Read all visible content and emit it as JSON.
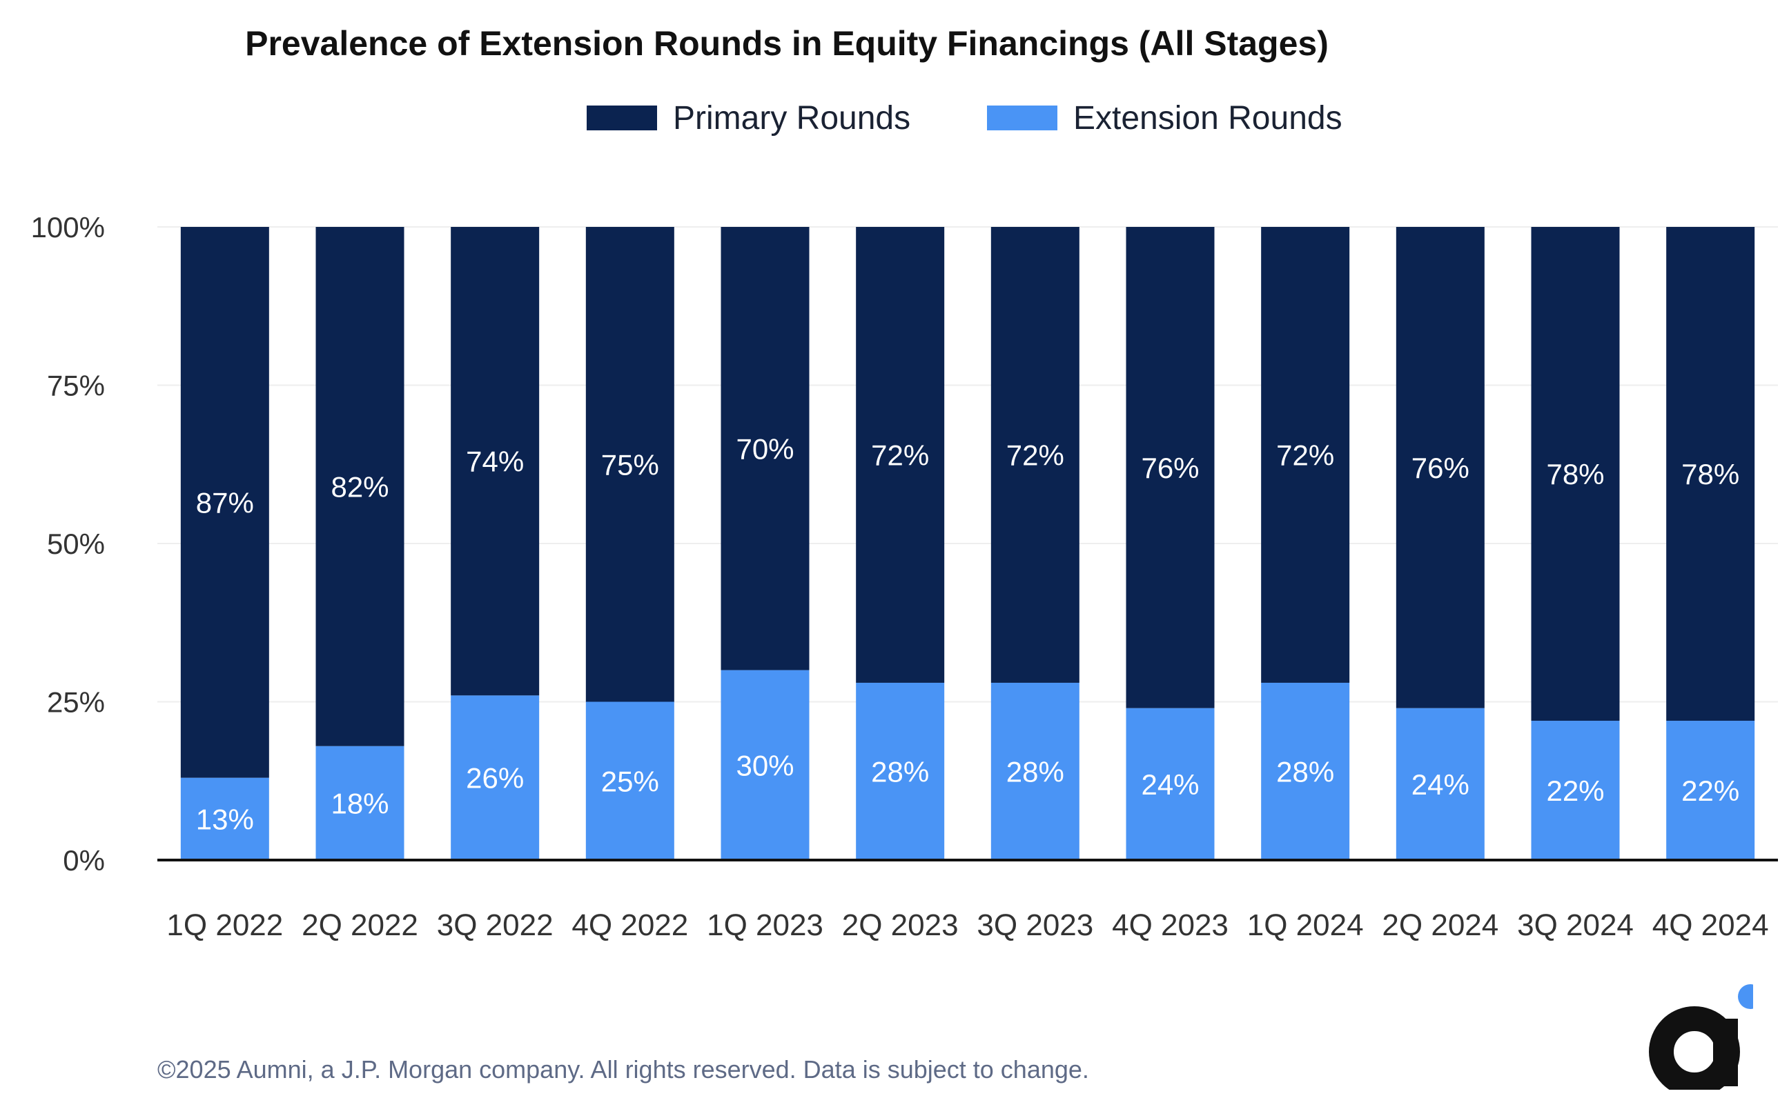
{
  "chart_data": {
    "type": "bar",
    "stacked": true,
    "title": "Prevalence of Extension Rounds in Equity Financings (All Stages)",
    "categories": [
      "1Q 2022",
      "2Q 2022",
      "3Q 2022",
      "4Q 2022",
      "1Q 2023",
      "2Q 2023",
      "3Q 2023",
      "4Q 2023",
      "1Q 2024",
      "2Q 2024",
      "3Q 2024",
      "4Q 2024"
    ],
    "series": [
      {
        "name": "Extension Rounds",
        "color": "#4a94f5",
        "values": [
          13,
          18,
          26,
          25,
          30,
          28,
          28,
          24,
          28,
          24,
          22,
          22
        ]
      },
      {
        "name": "Primary Rounds",
        "color": "#0b2350",
        "values": [
          87,
          82,
          74,
          75,
          70,
          72,
          72,
          76,
          72,
          76,
          78,
          78
        ]
      }
    ],
    "legend_order": [
      "Primary Rounds",
      "Extension Rounds"
    ],
    "legend_position": "top-center",
    "yticks": [
      "0%",
      "25%",
      "50%",
      "75%",
      "100%"
    ],
    "ylim": [
      0,
      100
    ],
    "grid": true,
    "xlabel": "",
    "ylabel": ""
  },
  "footer": "©2025 Aumni, a J.P. Morgan company. All rights reserved. Data is subject to change.",
  "logo": {
    "icon": "aumni-logo-icon",
    "color": "#111111",
    "dot_color": "#4a94f5"
  }
}
